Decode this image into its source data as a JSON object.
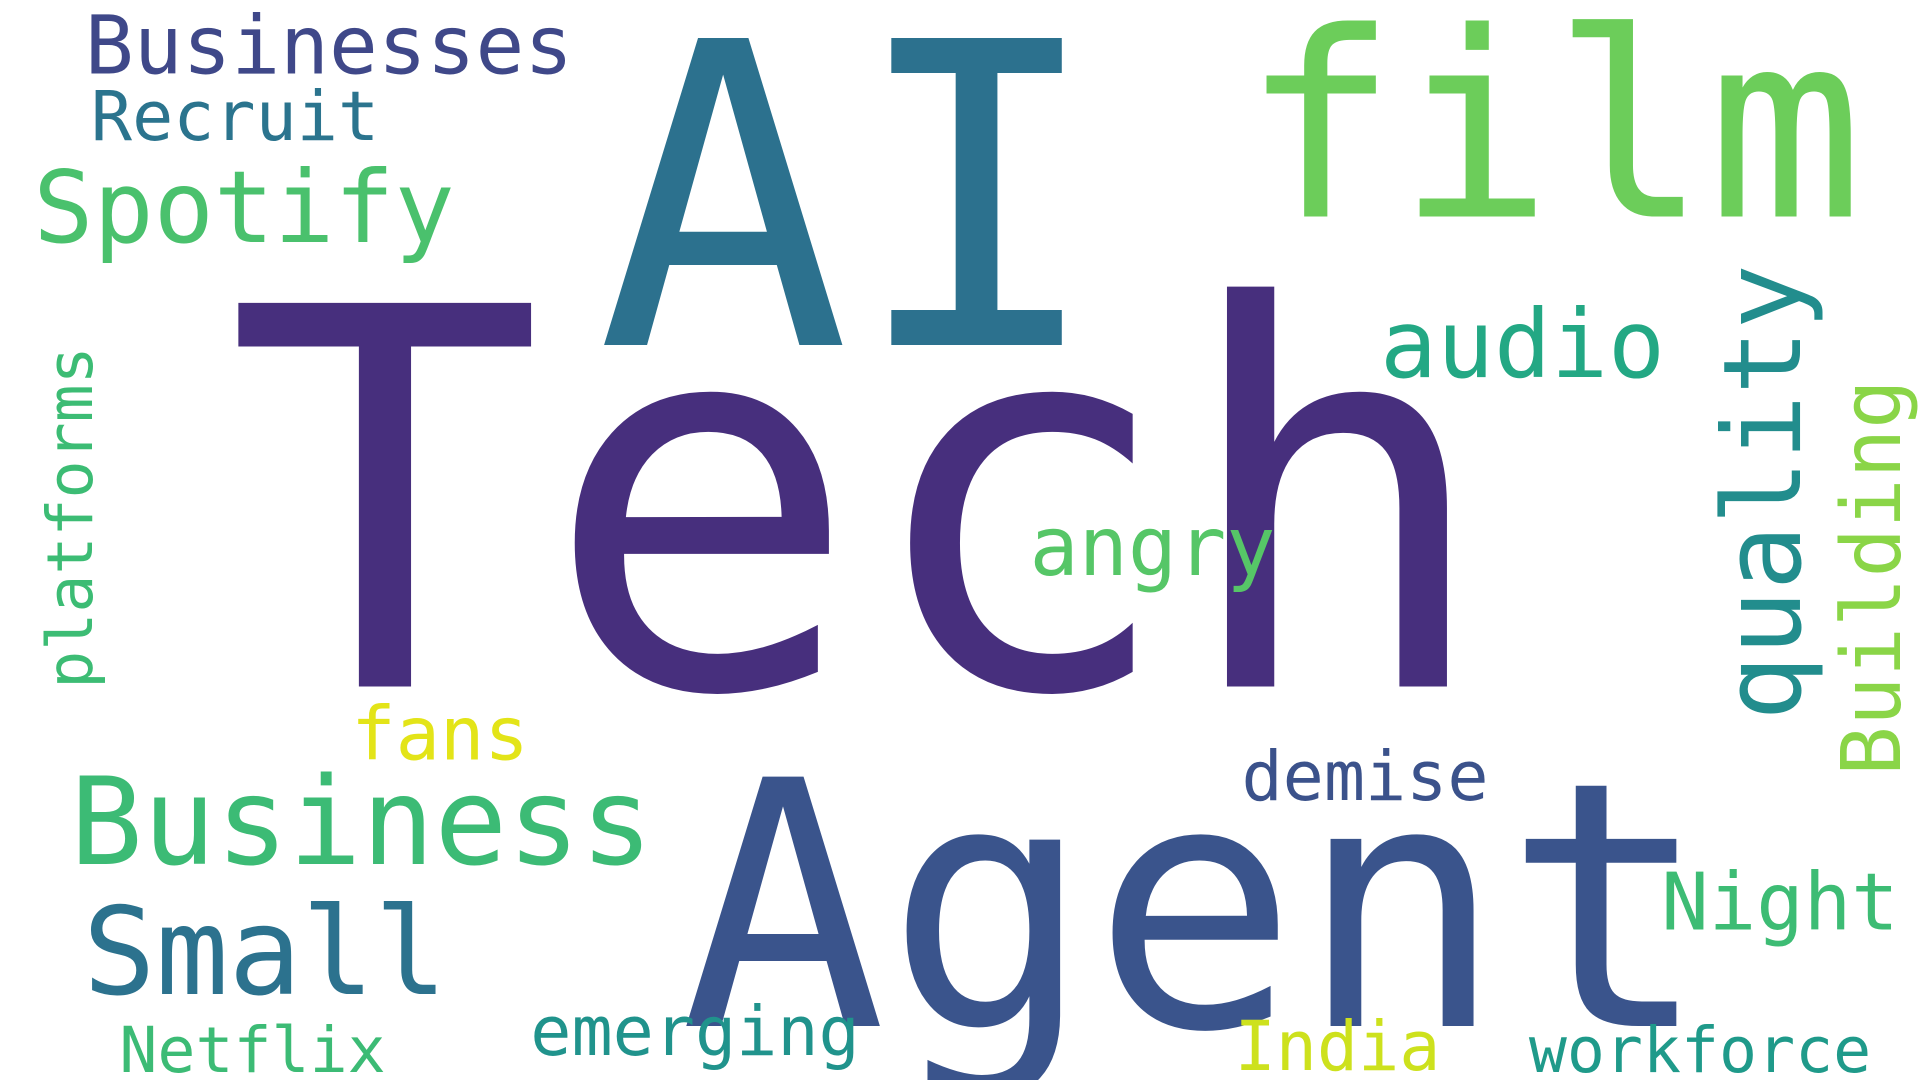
{
  "words": [
    {
      "text": "Tech",
      "color": "#472f7d"
    },
    {
      "text": "AI",
      "color": "#2c718e"
    },
    {
      "text": "film",
      "color": "#6ccd5a"
    },
    {
      "text": "Agent",
      "color": "#3a548c"
    },
    {
      "text": "Businesses",
      "color": "#3f4889"
    },
    {
      "text": "Business",
      "color": "#3cbb75"
    },
    {
      "text": "Small",
      "color": "#2c728e"
    },
    {
      "text": "Spotify",
      "color": "#4ac16d"
    },
    {
      "text": "audio",
      "color": "#23a884"
    },
    {
      "text": "quality",
      "color": "#228d8d"
    },
    {
      "text": "platforms",
      "color": "#3cbc74"
    },
    {
      "text": "Recruit",
      "color": "#2b748e"
    },
    {
      "text": "angry",
      "color": "#56c667"
    },
    {
      "text": "Building",
      "color": "#8ad547"
    },
    {
      "text": "fans",
      "color": "#e3e418"
    },
    {
      "text": "demise",
      "color": "#3b528b"
    },
    {
      "text": "Night",
      "color": "#3dbc74"
    },
    {
      "text": "emerging",
      "color": "#20938c"
    },
    {
      "text": "Netflix",
      "color": "#3cbb75"
    },
    {
      "text": "India",
      "color": "#cde11d"
    },
    {
      "text": "workforce",
      "color": "#1f9a8a"
    }
  ]
}
